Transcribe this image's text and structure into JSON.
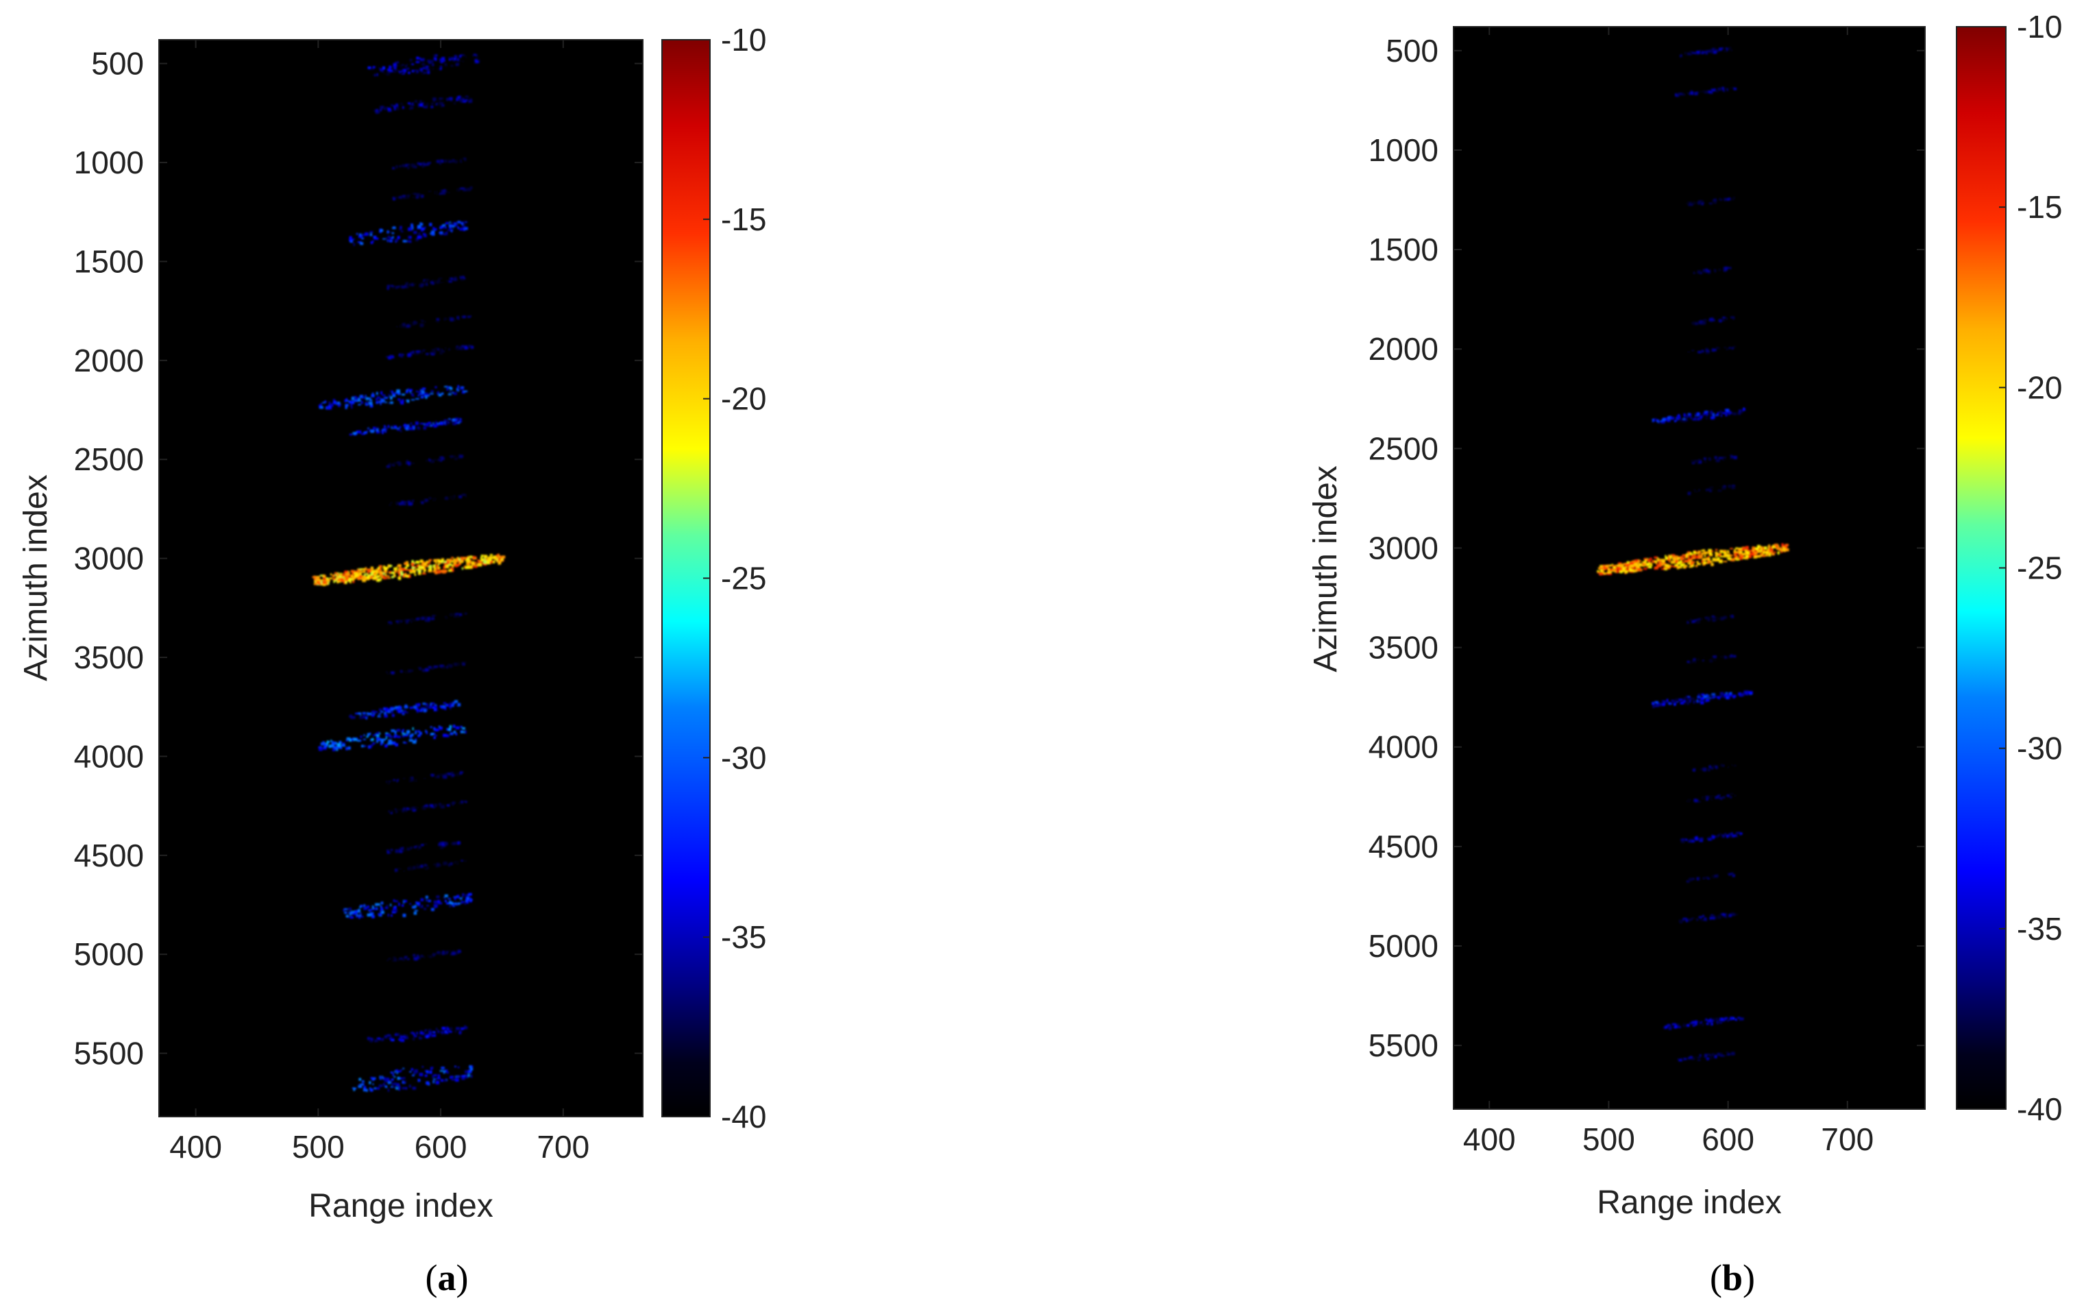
{
  "chart_data": [
    {
      "type": "heatmap",
      "panel_label": "a",
      "xlabel": "Range index",
      "ylabel": "Azimuth index",
      "xticks": [
        400,
        500,
        600,
        700
      ],
      "yticks": [
        500,
        1000,
        1500,
        2000,
        2500,
        3000,
        3500,
        4000,
        4500,
        5000,
        5500
      ],
      "xlim": [
        370,
        765
      ],
      "ylim": [
        380,
        5820
      ],
      "colorbar": {
        "ticks": [
          -10,
          -15,
          -20,
          -25,
          -30,
          -35,
          -40
        ],
        "range": [
          -40,
          -10
        ],
        "colormap": "jet"
      },
      "features": [
        {
          "azimuth": 500,
          "range": [
            540,
            630
          ],
          "level": -35,
          "spread": 90
        },
        {
          "azimuth": 700,
          "range": [
            545,
            625
          ],
          "level": -36,
          "spread": 50
        },
        {
          "azimuth": 1000,
          "range": [
            560,
            620
          ],
          "level": -38,
          "spread": 20
        },
        {
          "azimuth": 1150,
          "range": [
            560,
            625
          ],
          "level": -38,
          "spread": 20
        },
        {
          "azimuth": 1350,
          "range": [
            525,
            620
          ],
          "level": -32,
          "spread": 90
        },
        {
          "azimuth": 1600,
          "range": [
            555,
            620
          ],
          "level": -38,
          "spread": 25
        },
        {
          "azimuth": 1800,
          "range": [
            555,
            625
          ],
          "level": -38,
          "spread": 25
        },
        {
          "azimuth": 1950,
          "range": [
            555,
            625
          ],
          "level": -37,
          "spread": 25
        },
        {
          "azimuth": 2180,
          "range": [
            500,
            620
          ],
          "level": -31,
          "spread": 70
        },
        {
          "azimuth": 2330,
          "range": [
            525,
            615
          ],
          "level": -32,
          "spread": 40
        },
        {
          "azimuth": 2500,
          "range": [
            555,
            620
          ],
          "level": -38,
          "spread": 20
        },
        {
          "azimuth": 2700,
          "range": [
            555,
            620
          ],
          "level": -38,
          "spread": 20
        },
        {
          "azimuth": 3050,
          "range": [
            495,
            650
          ],
          "level": -17,
          "spread": 80
        },
        {
          "azimuth": 3300,
          "range": [
            555,
            620
          ],
          "level": -38,
          "spread": 20
        },
        {
          "azimuth": 3550,
          "range": [
            555,
            620
          ],
          "level": -38,
          "spread": 20
        },
        {
          "azimuth": 3760,
          "range": [
            525,
            615
          ],
          "level": -32,
          "spread": 50
        },
        {
          "azimuth": 3900,
          "range": [
            500,
            620
          ],
          "level": -30,
          "spread": 80
        },
        {
          "azimuth": 4100,
          "range": [
            555,
            620
          ],
          "level": -38,
          "spread": 20
        },
        {
          "azimuth": 4250,
          "range": [
            555,
            620
          ],
          "level": -37,
          "spread": 20
        },
        {
          "azimuth": 4450,
          "range": [
            555,
            620
          ],
          "level": -37,
          "spread": 25
        },
        {
          "azimuth": 4550,
          "range": [
            555,
            620
          ],
          "level": -38,
          "spread": 20
        },
        {
          "azimuth": 4750,
          "range": [
            520,
            625
          ],
          "level": -31,
          "spread": 90
        },
        {
          "azimuth": 5000,
          "range": [
            555,
            620
          ],
          "level": -38,
          "spread": 20
        },
        {
          "azimuth": 5400,
          "range": [
            540,
            620
          ],
          "level": -35,
          "spread": 50
        },
        {
          "azimuth": 5620,
          "range": [
            525,
            625
          ],
          "level": -31,
          "spread": 110
        }
      ]
    },
    {
      "type": "heatmap",
      "panel_label": "b",
      "xlabel": "Range index",
      "ylabel": "Azimuth index",
      "xticks": [
        400,
        500,
        600,
        700
      ],
      "yticks": [
        500,
        1000,
        1500,
        2000,
        2500,
        3000,
        3500,
        4000,
        4500,
        5000,
        5500
      ],
      "xlim": [
        370,
        765
      ],
      "ylim": [
        380,
        5820
      ],
      "colorbar": {
        "ticks": [
          -10,
          -15,
          -20,
          -25,
          -30,
          -35,
          -40
        ],
        "range": [
          -40,
          -10
        ],
        "colormap": "jet"
      },
      "features": [
        {
          "azimuth": 500,
          "range": [
            555,
            605
          ],
          "level": -37,
          "spread": 20
        },
        {
          "azimuth": 700,
          "range": [
            555,
            605
          ],
          "level": -37,
          "spread": 20
        },
        {
          "azimuth": 1250,
          "range": [
            565,
            605
          ],
          "level": -38,
          "spread": 15
        },
        {
          "azimuth": 1600,
          "range": [
            565,
            605
          ],
          "level": -38,
          "spread": 15
        },
        {
          "azimuth": 1850,
          "range": [
            565,
            605
          ],
          "level": -38,
          "spread": 15
        },
        {
          "azimuth": 2000,
          "range": [
            565,
            605
          ],
          "level": -38,
          "spread": 15
        },
        {
          "azimuth": 2330,
          "range": [
            535,
            615
          ],
          "level": -33,
          "spread": 40
        },
        {
          "azimuth": 2550,
          "range": [
            565,
            605
          ],
          "level": -38,
          "spread": 15
        },
        {
          "azimuth": 2700,
          "range": [
            565,
            605
          ],
          "level": -38,
          "spread": 15
        },
        {
          "azimuth": 3050,
          "range": [
            490,
            650
          ],
          "level": -16,
          "spread": 80
        },
        {
          "azimuth": 3350,
          "range": [
            565,
            605
          ],
          "level": -38,
          "spread": 15
        },
        {
          "azimuth": 3550,
          "range": [
            565,
            605
          ],
          "level": -38,
          "spread": 15
        },
        {
          "azimuth": 3750,
          "range": [
            535,
            620
          ],
          "level": -33,
          "spread": 40
        },
        {
          "azimuth": 4100,
          "range": [
            565,
            605
          ],
          "level": -38,
          "spread": 15
        },
        {
          "azimuth": 4250,
          "range": [
            565,
            605
          ],
          "level": -38,
          "spread": 15
        },
        {
          "azimuth": 4450,
          "range": [
            555,
            610
          ],
          "level": -36,
          "spread": 20
        },
        {
          "azimuth": 4650,
          "range": [
            565,
            605
          ],
          "level": -38,
          "spread": 15
        },
        {
          "azimuth": 4850,
          "range": [
            555,
            610
          ],
          "level": -37,
          "spread": 20
        },
        {
          "azimuth": 5380,
          "range": [
            545,
            610
          ],
          "level": -35,
          "spread": 30
        },
        {
          "azimuth": 5550,
          "range": [
            555,
            605
          ],
          "level": -37,
          "spread": 20
        }
      ]
    }
  ]
}
